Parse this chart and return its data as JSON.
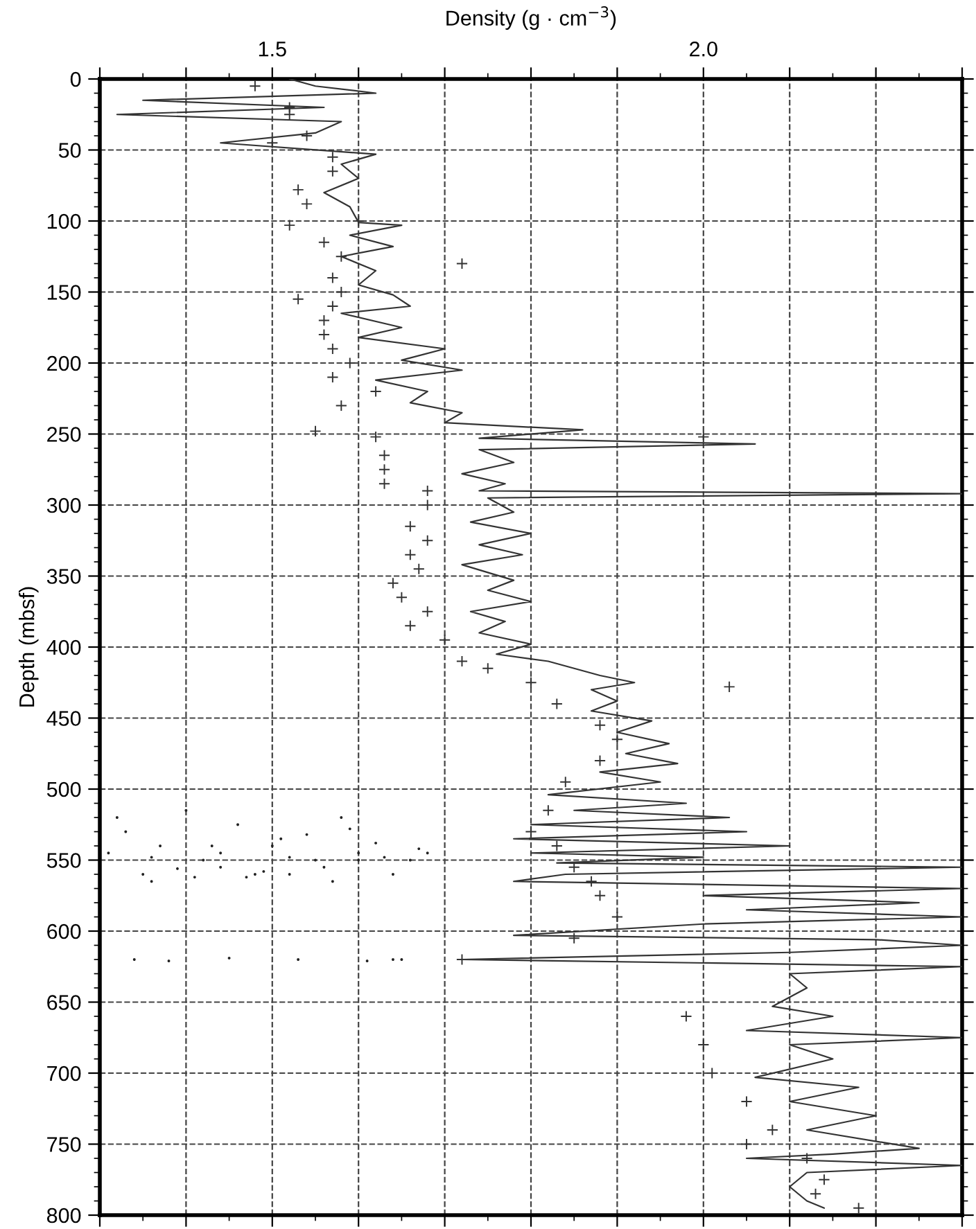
{
  "chart_data": {
    "type": "line",
    "xlabel": "Density (g · cm$^{−3}$)",
    "ylabel": "Depth (mbsf)",
    "xlim": [
      1.3,
      2.3
    ],
    "ylim": [
      800,
      0
    ],
    "xticks": [
      {
        "value": 1.3,
        "label": null
      },
      {
        "value": 1.4,
        "label": null
      },
      {
        "value": 1.5,
        "label": "1.5"
      },
      {
        "value": 1.6,
        "label": null
      },
      {
        "value": 1.7,
        "label": null
      },
      {
        "value": 1.8,
        "label": null
      },
      {
        "value": 1.9,
        "label": null
      },
      {
        "value": 2.0,
        "label": "2.0"
      },
      {
        "value": 2.1,
        "label": null
      },
      {
        "value": 2.2,
        "label": null
      },
      {
        "value": 2.3,
        "label": null
      }
    ],
    "yticks": [
      0,
      50,
      100,
      150,
      200,
      250,
      300,
      350,
      400,
      450,
      500,
      550,
      600,
      650,
      700,
      750,
      800
    ],
    "grid": true,
    "series": [
      {
        "color": "#333333",
        "marker": "none",
        "x": [
          1.52,
          1.55,
          1.62,
          1.35,
          1.56,
          1.32,
          1.58,
          1.55,
          1.44,
          1.62,
          1.58,
          1.6,
          1.56,
          1.59,
          1.6,
          1.65,
          1.59,
          1.64,
          1.58,
          1.62,
          1.6,
          1.64,
          1.66,
          1.58,
          1.65,
          1.6,
          1.7,
          1.65,
          1.72,
          1.62,
          1.68,
          1.66,
          1.72,
          1.7,
          1.76,
          1.86,
          1.74,
          2.06,
          1.74,
          1.78,
          1.72,
          1.77,
          1.74,
          2.3,
          1.75,
          1.78,
          1.73,
          1.8,
          1.74,
          1.79,
          1.72,
          1.78,
          1.75,
          1.8,
          1.73,
          1.77,
          1.74,
          1.8,
          1.76,
          1.82,
          1.85,
          1.88,
          1.92,
          1.87,
          1.9,
          1.87,
          1.94,
          1.9,
          1.96,
          1.91,
          1.97,
          1.88,
          1.95,
          1.82,
          1.98,
          1.85,
          2.03,
          1.8,
          2.05,
          1.78,
          2.1,
          1.8,
          2.0,
          1.83,
          2.3,
          1.84,
          1.78,
          2.3,
          2.0,
          2.25,
          2.05,
          2.3,
          2.0,
          1.78,
          2.2,
          2.3,
          2.1,
          1.72,
          2.3,
          2.1,
          2.12,
          2.08,
          2.15,
          2.05,
          2.3,
          2.1,
          2.15,
          2.06,
          2.18,
          2.1,
          2.2,
          2.12,
          2.25,
          2.15,
          2.05,
          2.3,
          2.12,
          2.1,
          2.12,
          2.14
        ],
        "values": [
          0,
          5,
          10,
          15,
          20,
          25,
          30,
          38,
          45,
          53,
          60,
          70,
          80,
          90,
          101,
          103,
          110,
          118,
          125,
          135,
          145,
          152,
          160,
          165,
          175,
          182,
          190,
          198,
          205,
          212,
          220,
          228,
          235,
          242,
          244,
          247,
          253,
          257,
          261,
          270,
          278,
          285,
          290,
          292,
          295,
          305,
          312,
          320,
          328,
          335,
          342,
          353,
          360,
          368,
          375,
          382,
          390,
          398,
          405,
          410,
          415,
          420,
          425,
          430,
          438,
          445,
          452,
          460,
          468,
          475,
          482,
          488,
          495,
          504,
          510,
          515,
          520,
          525,
          530,
          535,
          540,
          545,
          548,
          552,
          555,
          560,
          565,
          570,
          575,
          580,
          585,
          590,
          595,
          603,
          606,
          610,
          615,
          620,
          625,
          630,
          640,
          653,
          660,
          670,
          675,
          680,
          690,
          703,
          710,
          720,
          730,
          740,
          753,
          757,
          760,
          765,
          770,
          780,
          790,
          795
        ]
      },
      {
        "type": "scatter",
        "color": "#333333",
        "marker": "cross",
        "x": [
          1.48,
          1.52,
          1.52,
          1.54,
          1.5,
          1.57,
          1.57,
          1.53,
          1.54,
          1.6,
          1.52,
          1.56,
          1.58,
          1.72,
          1.57,
          1.58,
          1.53,
          1.57,
          1.56,
          1.56,
          1.57,
          1.59,
          1.57,
          1.62,
          1.58,
          1.55,
          1.62,
          2.0,
          1.63,
          1.63,
          1.63,
          1.68,
          1.68,
          1.66,
          1.68,
          1.66,
          1.67,
          1.64,
          1.65,
          1.68,
          1.66,
          1.7,
          1.72,
          1.75,
          1.8,
          2.03,
          1.83,
          1.88,
          1.9,
          1.88,
          1.84,
          1.82,
          1.8,
          1.83,
          1.85,
          1.87,
          1.88,
          1.9,
          1.85,
          1.72,
          1.98,
          2.0,
          2.01,
          2.05,
          2.08,
          2.05,
          2.12,
          2.14,
          2.13,
          2.18
        ],
        "values": [
          5,
          20,
          25,
          40,
          45,
          55,
          65,
          78,
          88,
          100,
          103,
          115,
          125,
          130,
          140,
          150,
          155,
          160,
          170,
          180,
          190,
          200,
          210,
          220,
          230,
          248,
          252,
          252,
          265,
          275,
          285,
          290,
          300,
          315,
          325,
          335,
          345,
          355,
          365,
          375,
          385,
          395,
          410,
          415,
          425,
          428,
          440,
          455,
          465,
          480,
          495,
          515,
          530,
          540,
          555,
          565,
          575,
          590,
          605,
          620,
          660,
          680,
          700,
          720,
          740,
          750,
          760,
          775,
          785,
          795
        ]
      },
      {
        "type": "scatter",
        "color": "#222222",
        "marker": "circle",
        "x": [
          1.31,
          1.33,
          1.35,
          1.37,
          1.4,
          1.42,
          1.44,
          1.46,
          1.48,
          1.5,
          1.52,
          1.54,
          1.56,
          1.58,
          1.6,
          1.62,
          1.64,
          1.66,
          1.68,
          1.32,
          1.36,
          1.39,
          1.43,
          1.47,
          1.51,
          1.55,
          1.59,
          1.63,
          1.67,
          1.34,
          1.38,
          1.45,
          1.53,
          1.61,
          1.65,
          1.41,
          1.49,
          1.57,
          1.36,
          1.44,
          1.52,
          1.6,
          1.64
        ],
        "values": [
          545,
          530,
          560,
          540,
          515,
          550,
          545,
          525,
          560,
          540,
          548,
          532,
          555,
          520,
          545,
          538,
          560,
          550,
          545,
          520,
          548,
          556,
          540,
          562,
          535,
          550,
          528,
          548,
          542,
          620,
          621,
          619,
          620,
          621,
          620,
          562,
          558,
          565,
          565,
          555,
          560,
          550,
          620
        ]
      }
    ]
  }
}
